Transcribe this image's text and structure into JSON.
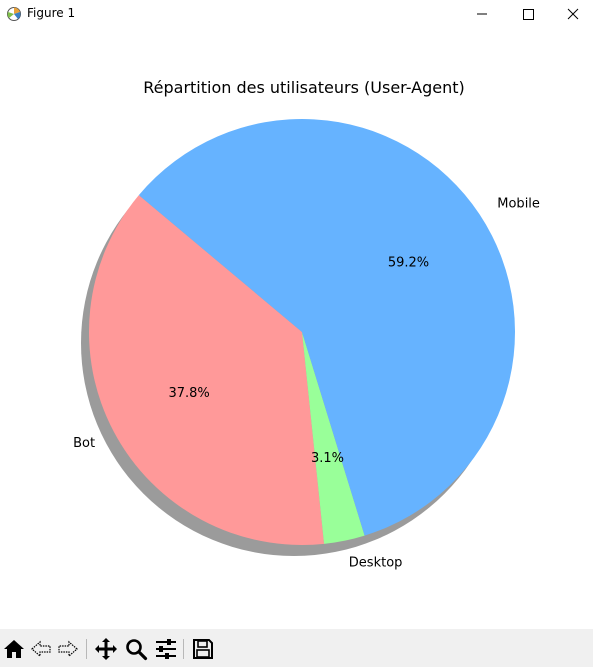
{
  "window": {
    "title": "Figure 1"
  },
  "chart_data": {
    "type": "pie",
    "title": "Répartition des utilisateurs (User-Agent)",
    "labels": [
      "Bot",
      "Desktop",
      "Mobile"
    ],
    "values": [
      37.8,
      3.1,
      59.2
    ],
    "pct_labels": [
      "37.8%",
      "3.1%",
      "59.2%"
    ],
    "colors": [
      "#ff9999",
      "#99ff99",
      "#66b3ff"
    ],
    "start_angle_deg": 140,
    "shadow": true
  },
  "toolbar": {
    "tools": [
      "home-icon",
      "back-icon",
      "forward-icon",
      "pan-icon",
      "zoom-icon",
      "configure-subplots-icon",
      "save-icon"
    ]
  }
}
